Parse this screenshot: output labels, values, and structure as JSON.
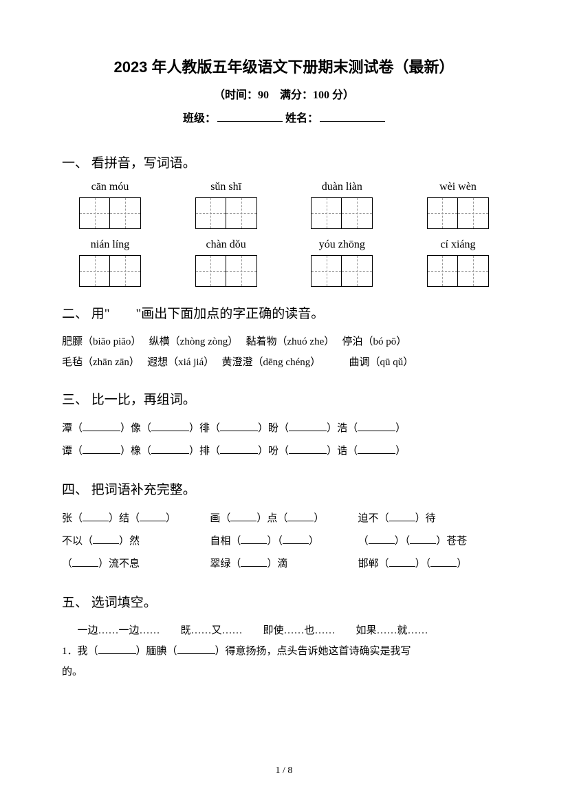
{
  "header": {
    "title": "2023 年人教版五年级语文下册期末测试卷（最新）",
    "subtitle": "（时间：90　满分：100 分）",
    "class_label": "班级：",
    "name_label": "姓名："
  },
  "q1": {
    "header": "一、 看拼音，写词语。",
    "row1": [
      "cān móu",
      "sǔn shī",
      "duàn liàn",
      "wèi wèn"
    ],
    "row2": [
      "nián líng",
      "chàn dǒu",
      "yóu zhōng",
      "cí xiáng"
    ]
  },
  "q2": {
    "header": "二、 用\"　　\"画出下面加点的字正确的读音。",
    "line1_a": "肥膘（biāo piāo）",
    "line1_b": "纵横（zhòng zòng）",
    "line1_c": "黏着物（zhuó zhe）",
    "line1_d": "停泊（bó pō）",
    "line2_a": "毛毡（zhān zān）",
    "line2_b": "遐想（xiá jiá）",
    "line2_c": "黄澄澄（dēng chéng）",
    "line2_d": "曲调（qū qǔ）"
  },
  "q3": {
    "header": "三、 比一比，再组词。",
    "row1": [
      "潭（",
      "）像（",
      "）徘（",
      "）盼（",
      "）浩（",
      "）"
    ],
    "row2": [
      "谭（",
      "）橡（",
      "）排（",
      "）吩（",
      "）诰（",
      "）"
    ]
  },
  "q4": {
    "header": "四、 把词语补充完整。",
    "row1_a": "张（",
    "row1_b": "）结（",
    "row1_c": "）",
    "row1_d": "画（",
    "row1_e": "）点（",
    "row1_f": "）",
    "row1_g": "迫不（",
    "row1_h": "）待",
    "row2_a": "不以（",
    "row2_b": "）然",
    "row2_c": "自相（",
    "row2_d": "）（",
    "row2_e": "）",
    "row2_f": "（",
    "row2_g": "）（",
    "row2_h": "）苍苍",
    "row3_a": "（",
    "row3_b": "）流不息",
    "row3_c": "翠绿（",
    "row3_d": "）滴",
    "row3_e": "邯郸（",
    "row3_f": "）（",
    "row3_g": "）"
  },
  "q5": {
    "header": "五、 选词填空。",
    "options": "一边……一边……　　既……又……　　即使……也……　　如果……就……",
    "item1_a": "1．我（",
    "item1_b": "）腼腆（",
    "item1_c": "）得意扬扬，点头告诉她这首诗确实是我写",
    "item1_d": "的。"
  },
  "footer": {
    "page": "1 / 8"
  }
}
